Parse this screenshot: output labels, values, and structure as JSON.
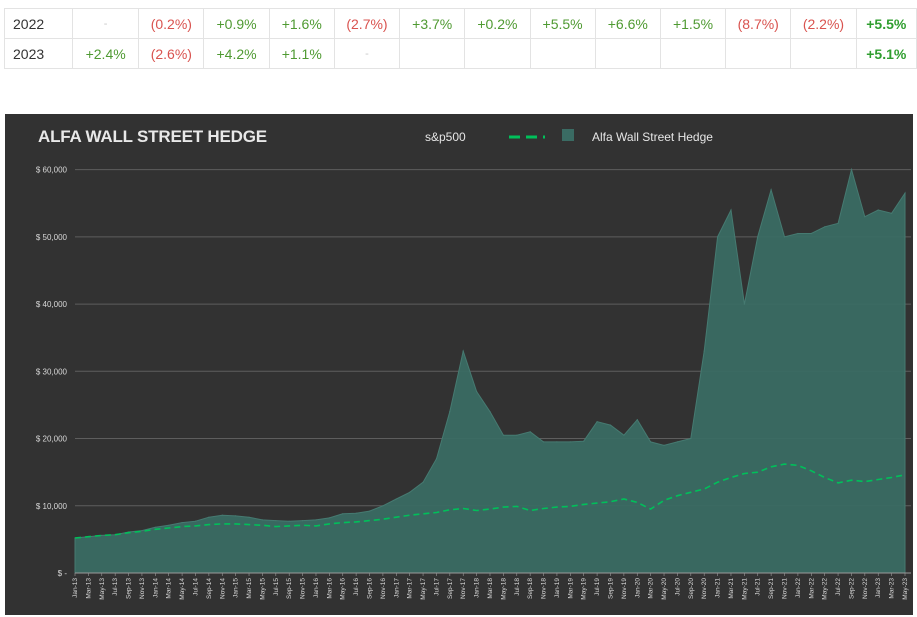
{
  "returns_table": {
    "rows": [
      {
        "year": "2022",
        "cells": [
          {
            "text": "-",
            "tone": "dash"
          },
          {
            "text": "(0.2%)",
            "tone": "neg"
          },
          {
            "text": "+0.9%",
            "tone": "pos"
          },
          {
            "text": "+1.6%",
            "tone": "pos"
          },
          {
            "text": "(2.7%)",
            "tone": "neg"
          },
          {
            "text": "+3.7%",
            "tone": "pos"
          },
          {
            "text": "+0.2%",
            "tone": "pos"
          },
          {
            "text": "+5.5%",
            "tone": "pos"
          },
          {
            "text": "+6.6%",
            "tone": "pos"
          },
          {
            "text": "+1.5%",
            "tone": "pos"
          },
          {
            "text": "(8.7%)",
            "tone": "neg"
          },
          {
            "text": "(2.2%)",
            "tone": "neg"
          }
        ],
        "total": "+5.5%"
      },
      {
        "year": "2023",
        "cells": [
          {
            "text": "+2.4%",
            "tone": "pos"
          },
          {
            "text": "(2.6%)",
            "tone": "neg"
          },
          {
            "text": "+4.2%",
            "tone": "pos"
          },
          {
            "text": "+1.1%",
            "tone": "pos"
          },
          {
            "text": "-",
            "tone": "dash"
          },
          {
            "text": "",
            "tone": "empty"
          },
          {
            "text": "",
            "tone": "empty"
          },
          {
            "text": "",
            "tone": "empty"
          },
          {
            "text": "",
            "tone": "empty"
          },
          {
            "text": "",
            "tone": "empty"
          },
          {
            "text": "",
            "tone": "empty"
          },
          {
            "text": "",
            "tone": "empty"
          }
        ],
        "total": "+5.1%"
      }
    ]
  },
  "chart_data": {
    "type": "area",
    "title": "ALFA WALL STREET HEDGE",
    "legend": [
      {
        "name": "s&p500",
        "style": "dashed-line",
        "color": "#00c05a"
      },
      {
        "name": "Alfa Wall Street Hedge",
        "style": "area",
        "color": "#3a6b63"
      }
    ],
    "ylim": [
      0,
      65000
    ],
    "y_ticks": [
      {
        "value": 0,
        "label": "$ -"
      },
      {
        "value": 10000,
        "label": "$ 10,000"
      },
      {
        "value": 20000,
        "label": "$ 20,000"
      },
      {
        "value": 30000,
        "label": "$ 30,000"
      },
      {
        "value": 40000,
        "label": "$ 40,000"
      },
      {
        "value": 50000,
        "label": "$ 50,000"
      },
      {
        "value": 60000,
        "label": "$ 60,000"
      }
    ],
    "grid": true,
    "x_tick_labels": [
      "Jan-13",
      "Mar-13",
      "May-13",
      "Jul-13",
      "Sep-13",
      "Nov-13",
      "Jan-14",
      "Mar-14",
      "May-14",
      "Jul-14",
      "Sep-14",
      "Nov-14",
      "Jan-15",
      "Mar-15",
      "May-15",
      "Jul-15",
      "Sep-15",
      "Nov-15",
      "Jan-16",
      "Mar-16",
      "May-16",
      "Jul-16",
      "Sep-16",
      "Nov-16",
      "Jan-17",
      "Mar-17",
      "May-17",
      "Jul-17",
      "Sep-17",
      "Nov-17",
      "Jan-18",
      "Mar-18",
      "May-18",
      "Jul-18",
      "Sep-18",
      "Nov-18",
      "Jan-19",
      "Mar-19",
      "May-19",
      "Jul-19",
      "Sep-19",
      "Nov-19",
      "Jan-20",
      "Mar-20",
      "May-20",
      "Jul-20",
      "Sep-20",
      "Nov-20",
      "Jan-21",
      "Mar-21",
      "May-21",
      "Jul-21",
      "Sep-21",
      "Nov-21",
      "Jan-22",
      "Mar-22",
      "May-22",
      "Jul-22",
      "Sep-22",
      "Nov-22",
      "Jan-23",
      "Mar-23",
      "May-23"
    ],
    "series": [
      {
        "name": "Alfa Wall Street Hedge",
        "values": [
          5200,
          5400,
          5600,
          5700,
          6100,
          6300,
          6800,
          7100,
          7500,
          7700,
          8300,
          8600,
          8500,
          8300,
          7900,
          7800,
          7700,
          7800,
          7900,
          8200,
          8800,
          8900,
          9200,
          10000,
          11000,
          12000,
          13500,
          17000,
          24000,
          33000,
          27000,
          24000,
          20500,
          20500,
          21000,
          19500,
          19500,
          19500,
          19600,
          22500,
          22000,
          20500,
          22800,
          19500,
          19000,
          19500,
          20000,
          33000,
          50000,
          54000,
          40000,
          50000,
          57000,
          50000,
          50500,
          50500,
          51500,
          52000,
          60000,
          53000,
          54000,
          53500,
          56500
        ]
      },
      {
        "name": "s&p500",
        "values": [
          5200,
          5400,
          5600,
          5700,
          6000,
          6200,
          6500,
          6700,
          6900,
          7000,
          7200,
          7300,
          7300,
          7200,
          7100,
          6900,
          7000,
          7100,
          7000,
          7300,
          7500,
          7600,
          7800,
          8000,
          8300,
          8600,
          8800,
          9000,
          9400,
          9600,
          9300,
          9500,
          9800,
          9900,
          9300,
          9600,
          9800,
          9900,
          10200,
          10400,
          10600,
          11000,
          10500,
          9500,
          10800,
          11500,
          12000,
          12500,
          13500,
          14200,
          14800,
          15000,
          15800,
          16200,
          16000,
          15200,
          14200,
          13400,
          13800,
          13600,
          13900,
          14200,
          14600
        ]
      }
    ]
  }
}
